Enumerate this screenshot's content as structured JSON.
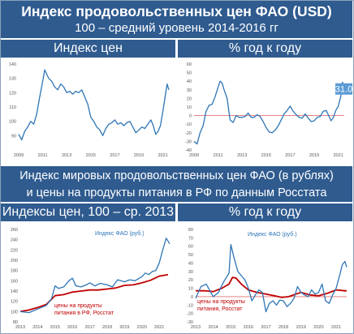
{
  "header": {
    "title": "Индекс продовольственных цен ФАО (USD)",
    "subtitle": "100 – средний уровень 2014-2016 гг"
  },
  "section2": {
    "line1": "Индекс мировых продовольственных цен ФАО (в рублях)",
    "line2": "и цены на продукты питания в РФ по данным Росстата"
  },
  "panels": {
    "tl": "Индекс цен",
    "tr": "% год к году",
    "bl": "Индексы цен, 100 – ср. 2013",
    "br": "% год к году"
  },
  "colors": {
    "banner": "#2f5b8f",
    "fao": "#2e75b6",
    "rosstat": "#c00000",
    "zero": "#e07070"
  },
  "chart_data": [
    {
      "type": "line",
      "id": "tl",
      "title": "Индекс цен",
      "xlim": [
        2009,
        2021.5
      ],
      "ylim": [
        80,
        140
      ],
      "x_ticks": [
        2009,
        2011,
        2013,
        2015,
        2017,
        2019,
        2021
      ],
      "y_ticks": [
        90,
        100,
        110,
        120,
        130,
        140
      ],
      "series": [
        {
          "x": [
            2009.0,
            2009.25,
            2009.5,
            2009.75,
            2010.0,
            2010.25,
            2010.5,
            2010.75,
            2011.0,
            2011.17,
            2011.33,
            2011.5,
            2011.75,
            2012.0,
            2012.25,
            2012.5,
            2012.75,
            2013.0,
            2013.25,
            2013.5,
            2013.75,
            2014.0,
            2014.25,
            2014.5,
            2014.75,
            2015.0,
            2015.25,
            2015.5,
            2015.75,
            2016.0,
            2016.25,
            2016.5,
            2016.75,
            2017.0,
            2017.25,
            2017.5,
            2017.75,
            2018.0,
            2018.25,
            2018.5,
            2018.75,
            2019.0,
            2019.25,
            2019.5,
            2019.75,
            2020.0,
            2020.2,
            2020.4,
            2020.6,
            2020.8,
            2021.0,
            2021.2,
            2021.35,
            2021.5
          ],
          "values": [
            91,
            87,
            93,
            96,
            100,
            98,
            105,
            117,
            128,
            136,
            133,
            130,
            128,
            124,
            122,
            126,
            124,
            120,
            121,
            119,
            121,
            120,
            122,
            117,
            112,
            103,
            100,
            96,
            94,
            90,
            95,
            98,
            99,
            101,
            98,
            99,
            97,
            99,
            100,
            96,
            92,
            94,
            96,
            95,
            98,
            101,
            97,
            91,
            93,
            97,
            107,
            118,
            126,
            122
          ]
        }
      ]
    },
    {
      "type": "line",
      "id": "tr",
      "title": "% год к году",
      "xlim": [
        2009,
        2021.5
      ],
      "ylim": [
        -40,
        60
      ],
      "x_ticks": [
        2009,
        2011,
        2013,
        2015,
        2017,
        2019,
        2021
      ],
      "y_ticks": [
        -40,
        -30,
        -20,
        -10,
        0,
        10,
        20,
        30,
        40,
        50,
        60
      ],
      "callout": "31.0",
      "series": [
        {
          "x": [
            2009.0,
            2009.25,
            2009.5,
            2009.75,
            2010.0,
            2010.25,
            2010.5,
            2010.75,
            2011.0,
            2011.17,
            2011.33,
            2011.5,
            2011.75,
            2012.0,
            2012.25,
            2012.5,
            2012.75,
            2013.0,
            2013.25,
            2013.5,
            2013.75,
            2014.0,
            2014.25,
            2014.5,
            2014.75,
            2015.0,
            2015.25,
            2015.5,
            2015.75,
            2016.0,
            2016.25,
            2016.5,
            2016.75,
            2017.0,
            2017.25,
            2017.5,
            2017.75,
            2018.0,
            2018.25,
            2018.5,
            2018.75,
            2019.0,
            2019.25,
            2019.5,
            2019.75,
            2020.0,
            2020.2,
            2020.4,
            2020.6,
            2020.8,
            2021.0,
            2021.2,
            2021.35,
            2021.5
          ],
          "values": [
            -30,
            -33,
            -20,
            -12,
            5,
            12,
            13,
            22,
            33,
            40,
            38,
            30,
            20,
            -5,
            -8,
            0,
            -2,
            -2,
            -1,
            3,
            -2,
            -2,
            1,
            -1,
            -7,
            -14,
            -19,
            -20,
            -17,
            -12,
            -5,
            2,
            6,
            11,
            5,
            1,
            -2,
            -3,
            2,
            -3,
            -7,
            -6,
            -2,
            -1,
            5,
            6,
            0,
            -6,
            -2,
            6,
            11,
            22,
            39,
            31
          ]
        }
      ]
    },
    {
      "type": "line",
      "id": "bl",
      "title": "Индексы цен, 100 – ср. 2013",
      "xlim": [
        2013,
        2021.6
      ],
      "ylim": [
        80,
        260
      ],
      "x_ticks": [
        2013,
        2014,
        2015,
        2016,
        2017,
        2018,
        2019,
        2020,
        2021
      ],
      "y_ticks": [
        80,
        100,
        120,
        140,
        160,
        180,
        200,
        220,
        240,
        260
      ],
      "series": [
        {
          "name": "Индекс ФАО (руб.)",
          "x": [
            2013.0,
            2013.5,
            2014.0,
            2014.5,
            2014.8,
            2015.0,
            2015.2,
            2015.5,
            2015.8,
            2016.0,
            2016.2,
            2016.5,
            2016.8,
            2017.0,
            2017.3,
            2017.6,
            2018.0,
            2018.3,
            2018.6,
            2019.0,
            2019.3,
            2019.6,
            2020.0,
            2020.2,
            2020.4,
            2020.6,
            2020.8,
            2021.0,
            2021.2,
            2021.4,
            2021.6
          ],
          "values": [
            100,
            98,
            105,
            112,
            125,
            150,
            145,
            148,
            160,
            165,
            150,
            148,
            152,
            156,
            150,
            155,
            152,
            148,
            162,
            158,
            162,
            160,
            168,
            175,
            172,
            178,
            180,
            195,
            220,
            243,
            232
          ]
        },
        {
          "name": "цены на продукты питания в РФ, Росстат",
          "x": [
            2013.0,
            2013.5,
            2014.0,
            2014.5,
            2015.0,
            2015.5,
            2016.0,
            2016.5,
            2017.0,
            2017.5,
            2018.0,
            2018.5,
            2019.0,
            2019.5,
            2020.0,
            2020.5,
            2021.0,
            2021.5
          ],
          "values": [
            100,
            103,
            108,
            114,
            131,
            133,
            138,
            140,
            142,
            142,
            144,
            146,
            151,
            152,
            156,
            161,
            169,
            172
          ]
        }
      ]
    },
    {
      "type": "line",
      "id": "br",
      "title": "% год к году",
      "xlim": [
        2013,
        2021.6
      ],
      "ylim": [
        -30,
        80
      ],
      "x_ticks": [
        2013,
        2014,
        2015,
        2016,
        2017,
        2018,
        2019,
        2020,
        2021
      ],
      "y_ticks": [
        -30,
        -20,
        -10,
        0,
        10,
        20,
        30,
        40,
        50,
        60,
        70,
        80
      ],
      "series": [
        {
          "name": "Индекс ФАО (руб.)",
          "x": [
            2013.0,
            2013.3,
            2013.6,
            2014.0,
            2014.3,
            2014.6,
            2014.9,
            2015.0,
            2015.2,
            2015.4,
            2015.6,
            2015.8,
            2016.0,
            2016.2,
            2016.4,
            2016.6,
            2016.8,
            2017.0,
            2017.2,
            2017.4,
            2017.6,
            2017.8,
            2018.0,
            2018.2,
            2018.4,
            2018.6,
            2018.8,
            2019.0,
            2019.2,
            2019.4,
            2019.6,
            2019.8,
            2020.0,
            2020.2,
            2020.4,
            2020.6,
            2020.8,
            2021.0,
            2021.2,
            2021.35,
            2021.5,
            2021.6
          ],
          "values": [
            -2,
            12,
            15,
            0,
            5,
            18,
            28,
            62,
            45,
            30,
            25,
            20,
            10,
            -5,
            2,
            8,
            5,
            -18,
            -8,
            -5,
            -10,
            -4,
            -5,
            -12,
            -8,
            -2,
            12,
            5,
            2,
            0,
            8,
            3,
            5,
            15,
            -5,
            -8,
            2,
            10,
            25,
            38,
            42,
            35
          ]
        },
        {
          "name": "цены на продукты питания в РФ, Росстат",
          "x": [
            2013.0,
            2013.5,
            2014.0,
            2014.5,
            2014.9,
            2015.1,
            2015.3,
            2015.6,
            2016.0,
            2016.5,
            2017.0,
            2017.5,
            2017.9,
            2018.3,
            2018.7,
            2019.0,
            2019.5,
            2020.0,
            2020.5,
            2021.0,
            2021.5,
            2021.6
          ],
          "values": [
            7,
            7,
            6,
            10,
            15,
            23,
            22,
            15,
            8,
            5,
            3,
            1,
            -1,
            0,
            3,
            5,
            2,
            1,
            4,
            8,
            7,
            7
          ]
        }
      ]
    }
  ],
  "annotations": {
    "bl_fao": "Индекс ФАО (руб.)",
    "bl_rosstat_1": "цены на продукты",
    "bl_rosstat_2": "питания в РФ, Росстат",
    "br_fao": "Индекс ФАО (руб.)",
    "br_rosstat_1": "цены на продукты",
    "br_rosstat_2": "питания, Росстат"
  }
}
